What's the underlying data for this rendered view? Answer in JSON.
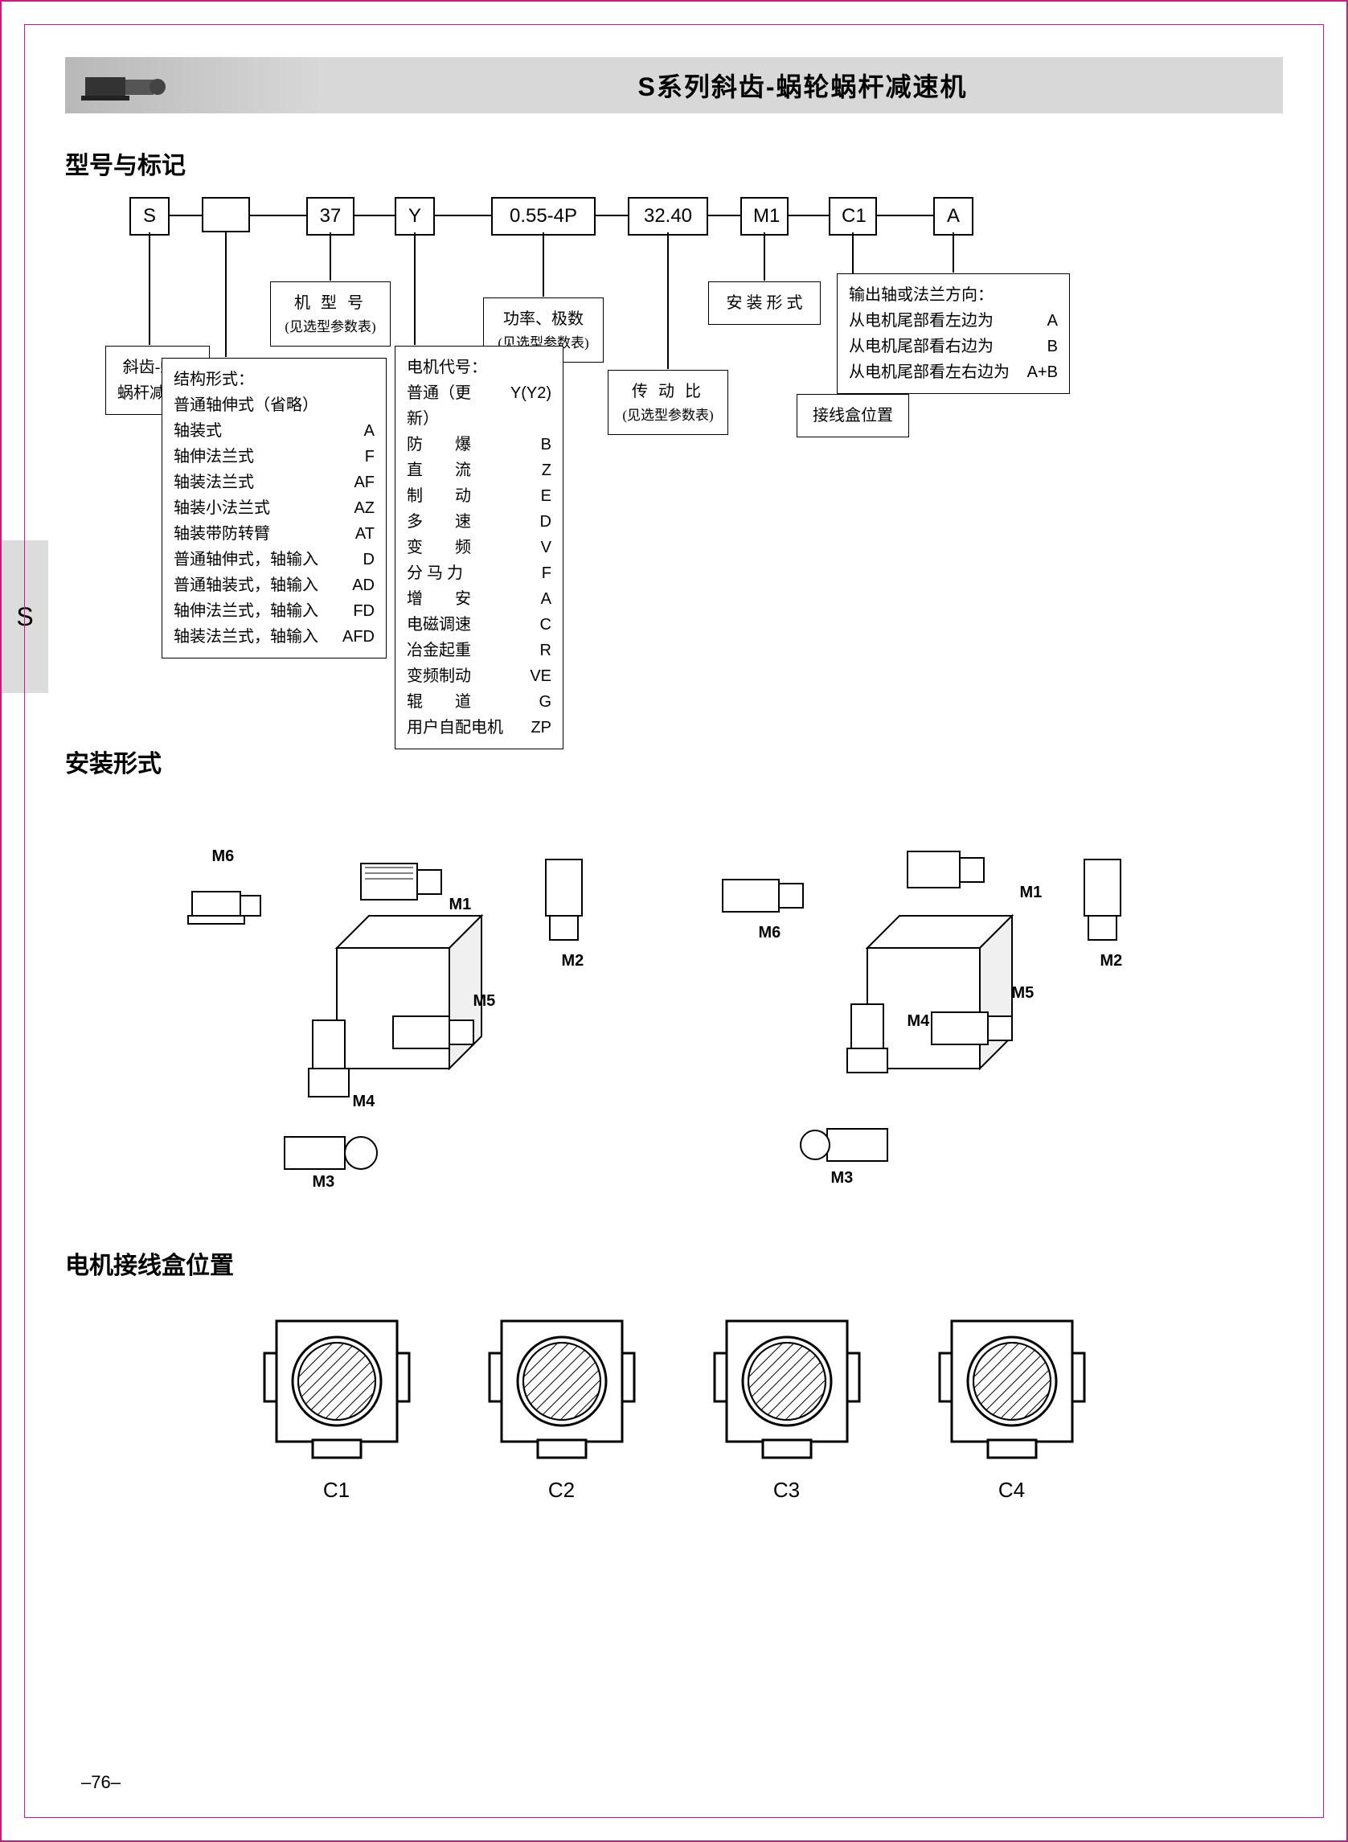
{
  "header": {
    "title": "S系列斜齿-蜗轮蜗杆减速机"
  },
  "sideTab": "S",
  "section1": {
    "title": "型号与标记",
    "boxes": {
      "b1": "S",
      "b2": "",
      "b3": "37",
      "b4": "Y",
      "b5": "0.55-4P",
      "b6": "32.40",
      "b7": "M1",
      "b8": "C1",
      "b9": "A"
    },
    "desc_b1": "斜齿-蜗轮\n蜗杆减速机",
    "desc_b3_title": "机 型 号",
    "desc_b3_sub": "(见选型参数表)",
    "desc_b5_title": "功率、极数",
    "desc_b5_sub": "(见选型参数表)",
    "desc_b6_title": "传 动 比",
    "desc_b6_sub": "(见选型参数表)",
    "desc_b7": "安 装 形 式",
    "desc_b8": "接线盒位置",
    "desc_b9_title": "输出轴或法兰方向：",
    "desc_b9_rows": [
      {
        "k": "从电机尾部看左边为",
        "v": "A"
      },
      {
        "k": "从电机尾部看右边为",
        "v": "B"
      },
      {
        "k": "从电机尾部看左右边为",
        "v": "A+B"
      }
    ],
    "desc_b2_title": "结构形式：",
    "desc_b2_rows": [
      {
        "k": "普通轴伸式（省略）",
        "v": ""
      },
      {
        "k": "轴装式",
        "v": "A"
      },
      {
        "k": "轴伸法兰式",
        "v": "F"
      },
      {
        "k": "轴装法兰式",
        "v": "AF"
      },
      {
        "k": "轴装小法兰式",
        "v": "AZ"
      },
      {
        "k": "轴装带防转臂",
        "v": "AT"
      },
      {
        "k": "普通轴伸式，轴输入",
        "v": "D"
      },
      {
        "k": "普通轴装式，轴输入",
        "v": "AD"
      },
      {
        "k": "轴伸法兰式，轴输入",
        "v": "FD"
      },
      {
        "k": "轴装法兰式，轴输入",
        "v": "AFD"
      }
    ],
    "desc_b4_title": "电机代号：",
    "desc_b4_rows": [
      {
        "k": "普通（更新）",
        "v": "Y(Y2)"
      },
      {
        "k": "防　　爆",
        "v": "B"
      },
      {
        "k": "直　　流",
        "v": "Z"
      },
      {
        "k": "制　　动",
        "v": "E"
      },
      {
        "k": "多　　速",
        "v": "D"
      },
      {
        "k": "变　　频",
        "v": "V"
      },
      {
        "k": "分 马 力",
        "v": "F"
      },
      {
        "k": "增　　安",
        "v": "A"
      },
      {
        "k": "电磁调速",
        "v": "C"
      },
      {
        "k": "冶金起重",
        "v": "R"
      },
      {
        "k": "变频制动",
        "v": "VE"
      },
      {
        "k": "辊　　道",
        "v": "G"
      },
      {
        "k": "用户自配电机",
        "v": "ZP"
      }
    ]
  },
  "section2": {
    "title": "安装形式",
    "labels": [
      "M1",
      "M2",
      "M3",
      "M4",
      "M5",
      "M6"
    ]
  },
  "section3": {
    "title": "电机接线盒位置",
    "items": [
      "C1",
      "C2",
      "C3",
      "C4"
    ]
  },
  "pageNum": "–76–",
  "colors": {
    "border": "#c02080",
    "headerBg": "#d8d8d8",
    "tabBg": "#dcdcdc"
  }
}
